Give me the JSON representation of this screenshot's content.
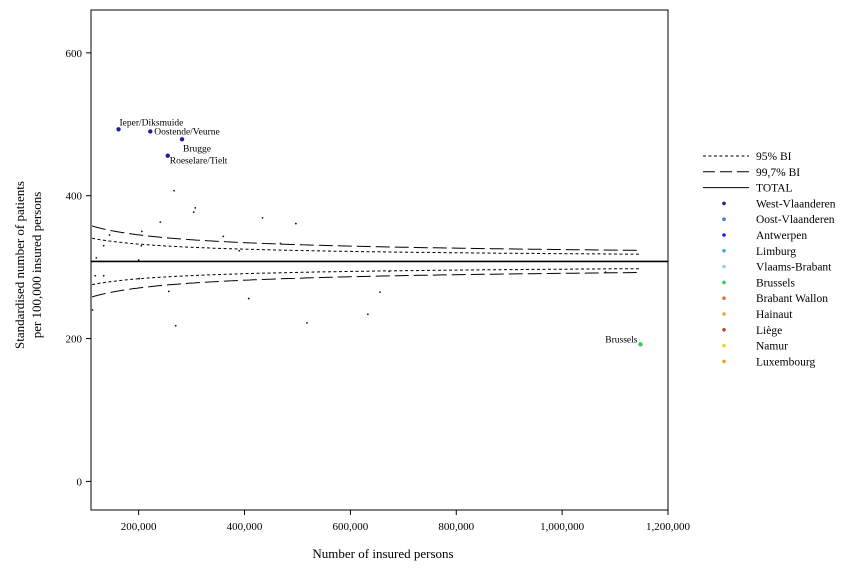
{
  "chart_data": {
    "type": "scatter",
    "xlabel": "Number of insured persons",
    "ylabel_line1": "Standardised number of patients",
    "ylabel_line2": "per 100,000 insured persons",
    "xlim": [
      110000,
      1200000
    ],
    "ylim": [
      -40,
      660
    ],
    "x_ticks": [
      200000,
      400000,
      600000,
      800000,
      1000000,
      1200000
    ],
    "x_tick_labels": [
      "200,000",
      "400,000",
      "600,000",
      "800,000",
      "1,000,000",
      "1,200,000"
    ],
    "y_ticks": [
      0,
      200,
      400,
      600
    ],
    "y_tick_labels": [
      "0",
      "200",
      "400",
      "600"
    ],
    "total": 308,
    "legend_position": "right",
    "legend": [
      {
        "label": "95% BI",
        "kind": "short-dash"
      },
      {
        "label": "99,7% BI",
        "kind": "long-dash"
      },
      {
        "label": "TOTAL",
        "kind": "solid"
      },
      {
        "label": "West-Vlaanderen",
        "kind": "dot",
        "color": "#1f1f8f"
      },
      {
        "label": "Oost-Vlaanderen",
        "kind": "dot",
        "color": "#3a7fd5"
      },
      {
        "label": "Antwerpen",
        "kind": "dot",
        "color": "#2020e0"
      },
      {
        "label": "Limburg",
        "kind": "dot",
        "color": "#3fa9e8"
      },
      {
        "label": "Vlaams-Brabant",
        "kind": "dot",
        "color": "#8fd0f0"
      },
      {
        "label": "Brussels",
        "kind": "dot",
        "color": "#33cc55"
      },
      {
        "label": "Brabant Wallon",
        "kind": "dot",
        "color": "#e07040"
      },
      {
        "label": "Hainaut",
        "kind": "dot",
        "color": "#f0a040"
      },
      {
        "label": "Liège",
        "kind": "dot",
        "color": "#b05020"
      },
      {
        "label": "Namur",
        "kind": "dot",
        "color": "#f0d020"
      },
      {
        "label": "Luxembourg",
        "kind": "dot",
        "color": "#f0a020"
      }
    ],
    "labeled_points": [
      {
        "label": "Ieper/Diksmuide",
        "x": 162000,
        "y": 493,
        "color": "#1f1f8f"
      },
      {
        "label": "Oostende/Veurne",
        "x": 222000,
        "y": 490,
        "color": "#1f1f8f"
      },
      {
        "label": "Brugge",
        "x": 282000,
        "y": 479,
        "color": "#1f1f8f"
      },
      {
        "label": "Roeselare/Tielt",
        "x": 255000,
        "y": 456,
        "color": "#1f1f8f"
      },
      {
        "label": "Brussels",
        "x": 1148000,
        "y": 192,
        "color": "#33cc55"
      }
    ],
    "points": [
      {
        "x": 267000,
        "y": 407
      },
      {
        "x": 307000,
        "y": 383
      },
      {
        "x": 304000,
        "y": 377
      },
      {
        "x": 434000,
        "y": 369
      },
      {
        "x": 497000,
        "y": 361
      },
      {
        "x": 241000,
        "y": 363
      },
      {
        "x": 206000,
        "y": 350
      },
      {
        "x": 145000,
        "y": 345
      },
      {
        "x": 360000,
        "y": 343
      },
      {
        "x": 134000,
        "y": 330
      },
      {
        "x": 205000,
        "y": 330
      },
      {
        "x": 468000,
        "y": 333
      },
      {
        "x": 390000,
        "y": 323
      },
      {
        "x": 120000,
        "y": 313
      },
      {
        "x": 200000,
        "y": 310
      },
      {
        "x": 673000,
        "y": 294
      },
      {
        "x": 1082000,
        "y": 293
      },
      {
        "x": 118000,
        "y": 288
      },
      {
        "x": 134000,
        "y": 288
      },
      {
        "x": 201000,
        "y": 284
      },
      {
        "x": 257000,
        "y": 266
      },
      {
        "x": 656000,
        "y": 265
      },
      {
        "x": 408000,
        "y": 256
      },
      {
        "x": 113000,
        "y": 240
      },
      {
        "x": 633000,
        "y": 234
      },
      {
        "x": 518000,
        "y": 222
      },
      {
        "x": 270000,
        "y": 218
      }
    ]
  }
}
